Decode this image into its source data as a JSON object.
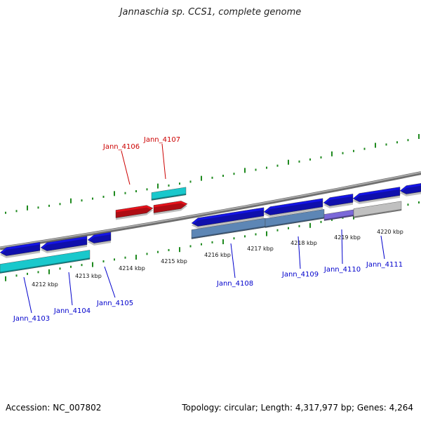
{
  "title": "Jannaschia sp. CCS1, complete genome",
  "footer": {
    "accession": "Accession: NC_007802",
    "summary": "Topology: circular; Length: 4,317,977 bp; Genes: 4,264"
  },
  "colors": {
    "backbone": "#8a8a8a",
    "tick": "#1f8a1f",
    "forward_gene": "#e8121b",
    "forward_cds": "#19c8cc",
    "reverse_gene": "#1414e6",
    "reverse_cds_cyan": "#19c8cc",
    "reverse_cds_steel": "#5d86b5",
    "reverse_cds_grey": "#c0c0c0",
    "label_forward": "#cc0000",
    "label_reverse": "#0000cc"
  },
  "kbp_labels": [
    "4212 kbp",
    "4213 kbp",
    "4214 kbp",
    "4215 kbp",
    "4216 kbp",
    "4217 kbp",
    "4218 kbp",
    "4219 kbp",
    "4220 kbp"
  ],
  "genes": [
    {
      "locus": "Jann_4103",
      "strand": "reverse"
    },
    {
      "locus": "Jann_4104",
      "strand": "reverse"
    },
    {
      "locus": "Jann_4105",
      "strand": "reverse"
    },
    {
      "locus": "Jann_4106",
      "strand": "forward"
    },
    {
      "locus": "Jann_4107",
      "strand": "forward"
    },
    {
      "locus": "Jann_4108",
      "strand": "reverse"
    },
    {
      "locus": "Jann_4109",
      "strand": "reverse"
    },
    {
      "locus": "Jann_4110",
      "strand": "reverse"
    },
    {
      "locus": "Jann_4111",
      "strand": "reverse"
    }
  ]
}
